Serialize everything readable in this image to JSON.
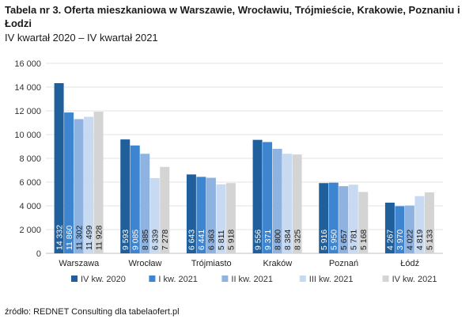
{
  "title": "Tabela nr 3. Oferta mieszkaniowa w Warszawie, Wrocławiu, Trójmieście, Krakowie, Poznaniu i Łodzi",
  "subtitle": "IV kwartał 2020 – IV kwartał 2021",
  "source": "źródło: REDNET Consulting dla tabelaofert.pl",
  "chart_data": {
    "type": "bar",
    "categories": [
      "Warszawa",
      "Wrocław",
      "Trójmiasto",
      "Kraków",
      "Poznań",
      "Łódź"
    ],
    "series": [
      {
        "name": "IV kw. 2020",
        "color": "#1f5f9c",
        "values": [
          14332,
          9593,
          6643,
          9556,
          5916,
          4267
        ],
        "labels": [
          "14 332",
          "9 593",
          "6 643",
          "9 556",
          "5 916",
          "4 267"
        ]
      },
      {
        "name": "I kw. 2021",
        "color": "#3d85d1",
        "values": [
          11860,
          9085,
          6441,
          9371,
          5950,
          3970
        ],
        "labels": [
          "11 860",
          "9 085",
          "6 441",
          "9 371",
          "5 950",
          "3 970"
        ]
      },
      {
        "name": "II kw. 2021",
        "color": "#8fb3e0",
        "values": [
          11302,
          8385,
          6363,
          8800,
          5657,
          4022
        ],
        "labels": [
          "11 302",
          "8 385",
          "6 363",
          "8 800",
          "5 657",
          "4 022"
        ]
      },
      {
        "name": "III kw. 2021",
        "color": "#c7daf1",
        "values": [
          11499,
          6339,
          5811,
          8384,
          5781,
          4819
        ],
        "labels": [
          "11 499",
          "6 339",
          "5 811",
          "8 384",
          "5 781",
          "4 819"
        ]
      },
      {
        "name": "IV kw. 2021",
        "color": "#d4d4d4",
        "values": [
          11928,
          7278,
          5918,
          8325,
          5168,
          5133
        ],
        "labels": [
          "11 928",
          "7 278",
          "5 918",
          "8 325",
          "5 168",
          "5 133"
        ]
      }
    ],
    "y_ticks": [
      "0",
      "2 000",
      "4 000",
      "6 000",
      "8 000",
      "10 000",
      "12 000",
      "14 000",
      "16 000"
    ],
    "ylim": [
      0,
      16000
    ],
    "grid": true,
    "legend_position": "bottom"
  }
}
